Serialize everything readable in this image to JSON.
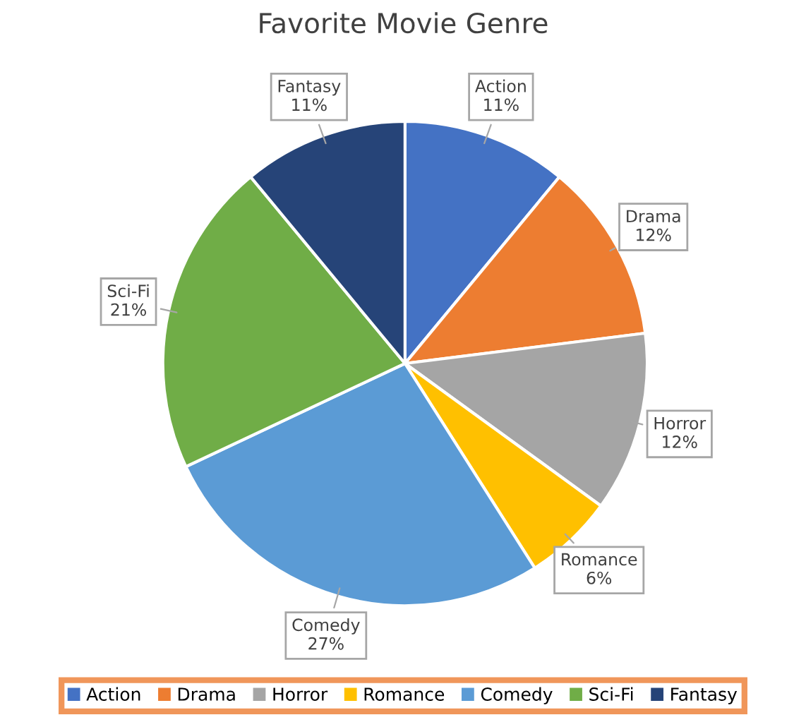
{
  "chart_data": {
    "type": "pie",
    "title": "Favorite Movie Genre",
    "categories": [
      "Action",
      "Drama",
      "Horror",
      "Romance",
      "Comedy",
      "Sci-Fi",
      "Fantasy"
    ],
    "values": [
      11,
      12,
      12,
      6,
      27,
      21,
      11
    ],
    "value_labels": [
      "11%",
      "12%",
      "12%",
      "6%",
      "27%",
      "21%",
      "11%"
    ],
    "colors": [
      "#4472c4",
      "#ed7d31",
      "#a5a5a5",
      "#ffc000",
      "#5b9bd5",
      "#70ad47",
      "#264478"
    ],
    "legend": "bottom"
  }
}
